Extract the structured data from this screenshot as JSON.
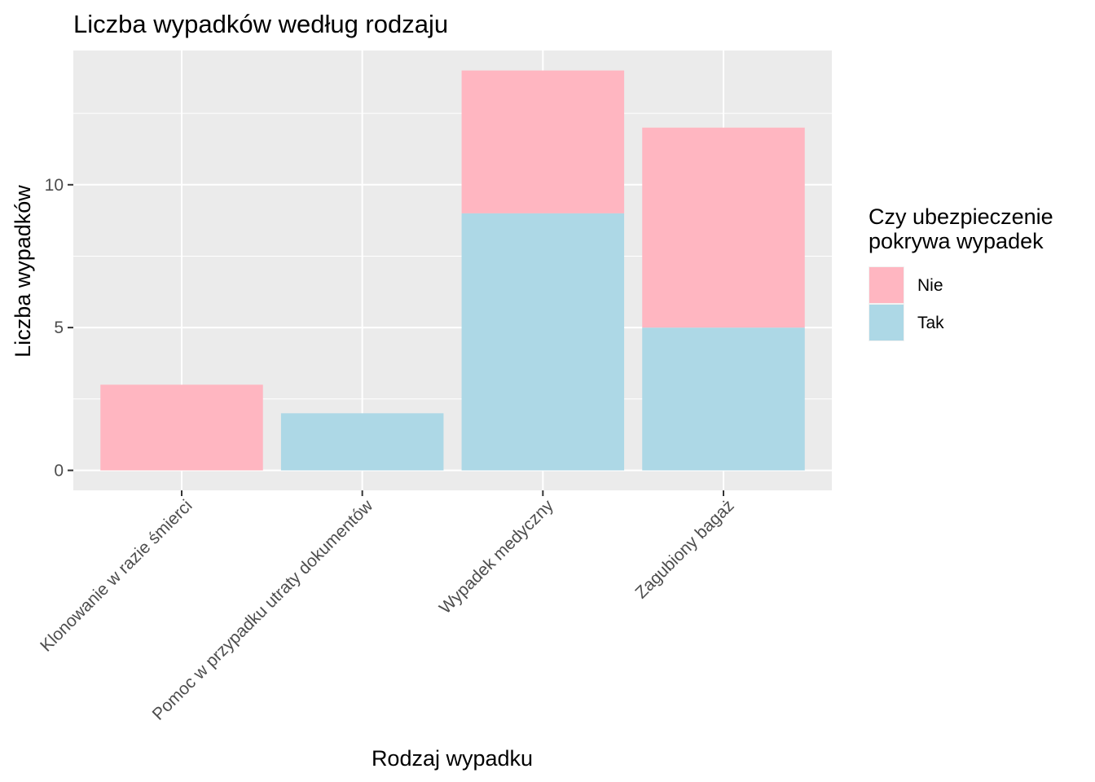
{
  "chart_data": {
    "type": "bar",
    "stacked": true,
    "title": "Liczba wypadków według rodzaju",
    "xlabel": "Rodzaj wypadku",
    "ylabel": "Liczba wypadków",
    "categories": [
      "Klonowanie w razie śmierci",
      "Pomoc w przypadku utraty dokumentów",
      "Wypadek medyczny",
      "Zagubiony bagaż"
    ],
    "series": [
      {
        "name": "Nie",
        "values": [
          3,
          0,
          5,
          7
        ],
        "color": "#ffb6c1"
      },
      {
        "name": "Tak",
        "values": [
          0,
          2,
          9,
          5
        ],
        "color": "#add8e6"
      }
    ],
    "ylim": [
      -0.7,
      14.7
    ],
    "yticks": [
      0,
      5,
      10
    ],
    "grid": true,
    "legend": {
      "title_lines": [
        "Czy ubezpieczenie",
        "pokrywa wypadek"
      ],
      "position": "right"
    },
    "panel_background": "#ebebeb",
    "grid_color": "#ffffff"
  }
}
